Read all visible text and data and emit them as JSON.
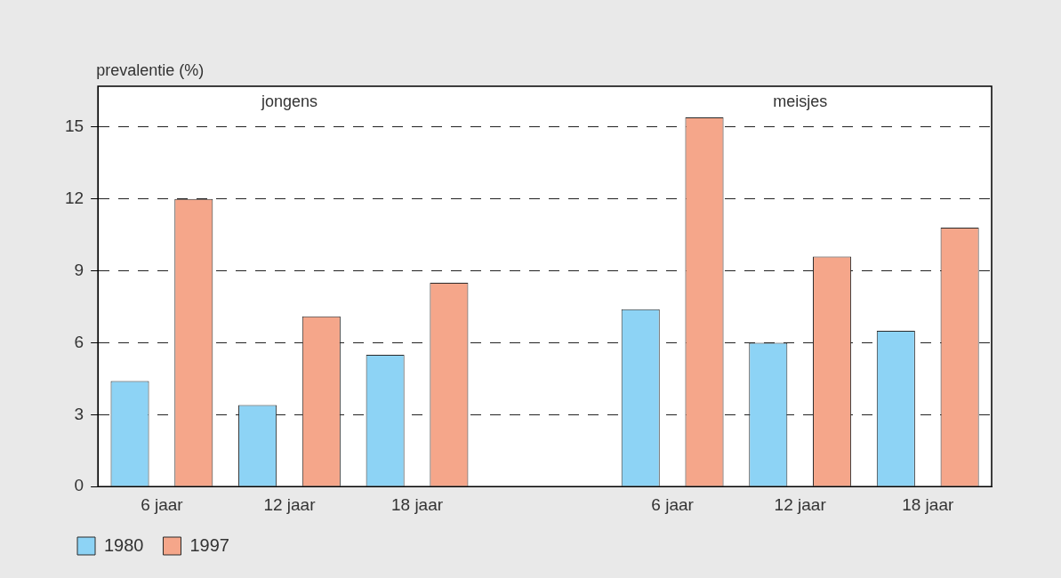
{
  "chart_data": {
    "type": "bar",
    "ylabel": "prevalentie (%)",
    "categories": [
      "6 jaar",
      "12 jaar",
      "18 jaar",
      null,
      "6 jaar",
      "12 jaar",
      "18 jaar"
    ],
    "series": [
      {
        "name": "1980",
        "color": "#8dd3f5",
        "values": [
          4.4,
          3.4,
          5.5,
          null,
          7.4,
          6.0,
          6.5
        ]
      },
      {
        "name": "1997",
        "color": "#f5a68a",
        "values": [
          12.0,
          7.1,
          8.5,
          null,
          15.4,
          9.6,
          10.8
        ]
      }
    ],
    "ylim": [
      0,
      16.7
    ],
    "yticks": [
      0,
      3,
      6,
      9,
      12,
      15
    ],
    "grid": "y",
    "legend": "bottom left",
    "annotations": [
      "jongens",
      "meisjes"
    ]
  }
}
